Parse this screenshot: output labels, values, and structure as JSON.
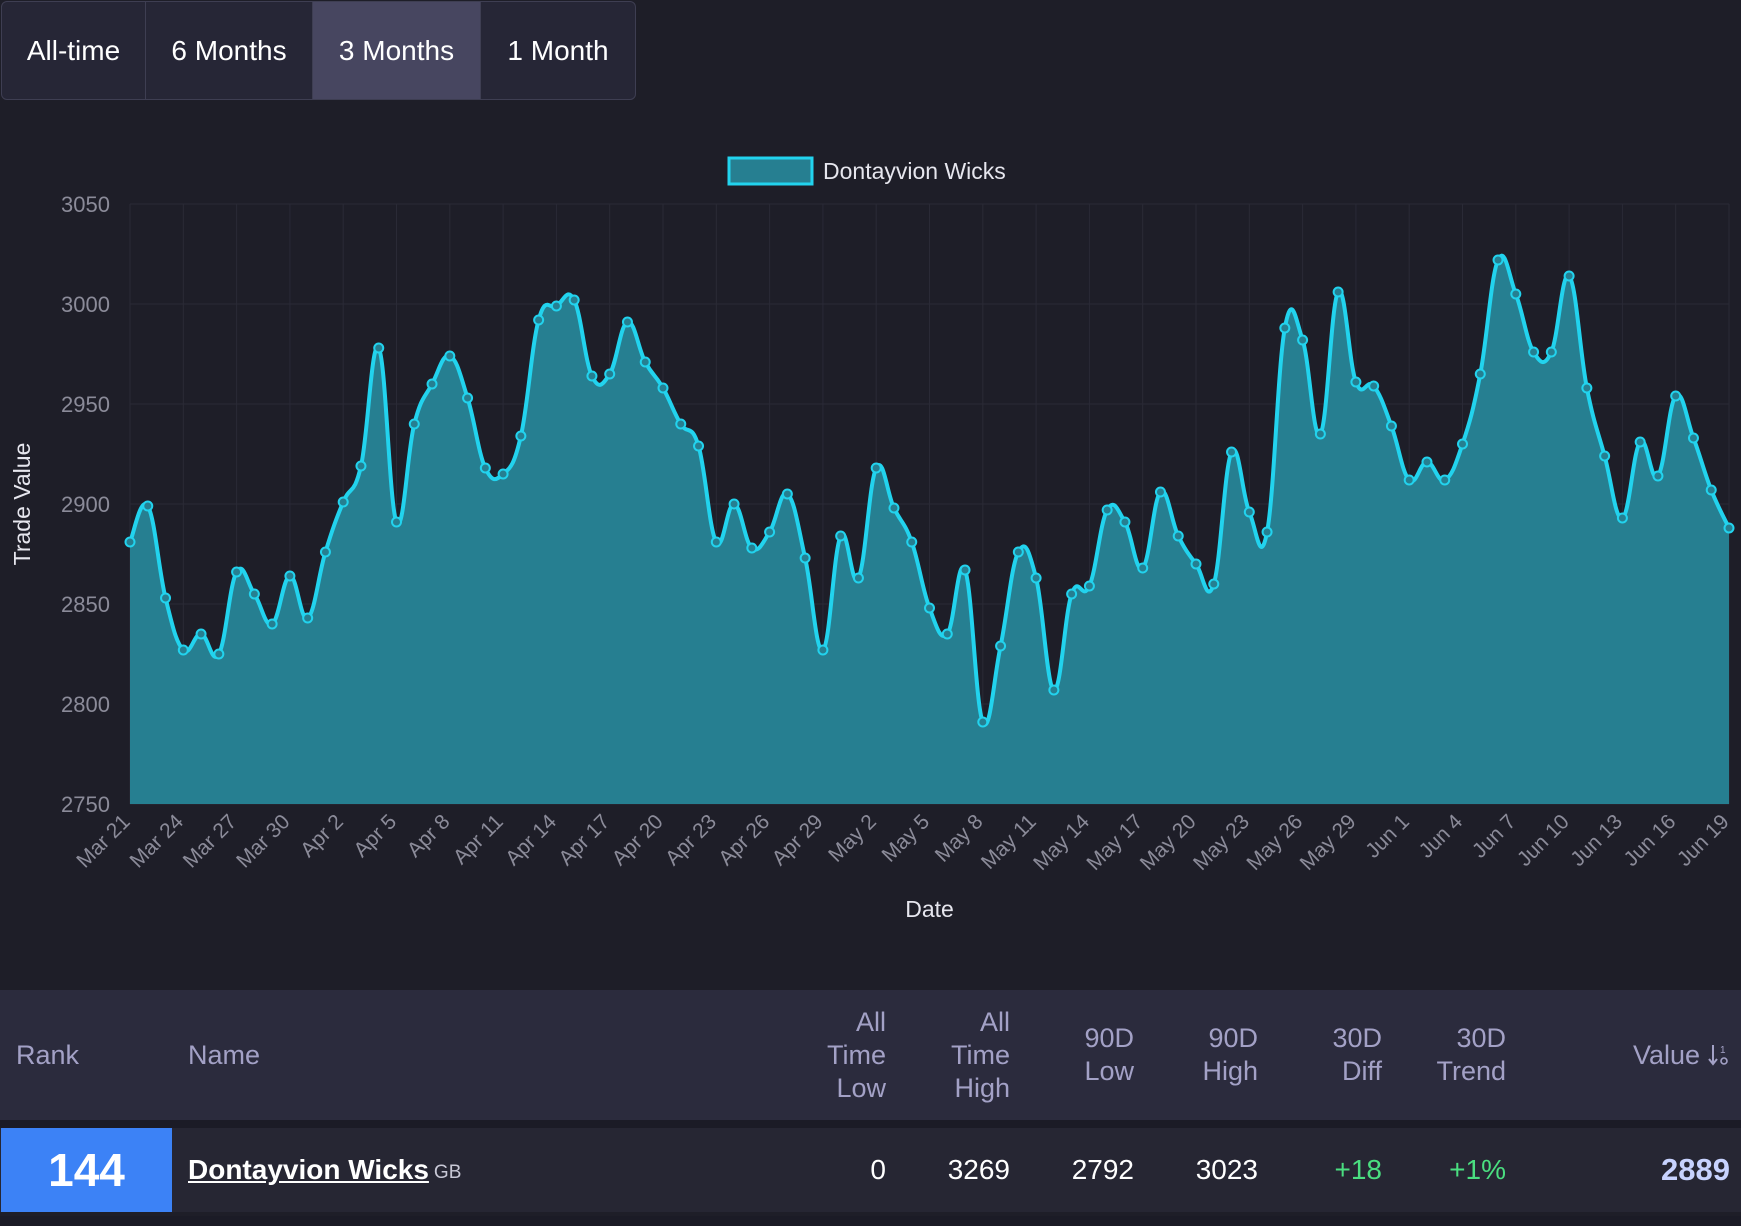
{
  "tabs": [
    {
      "label": "All-time",
      "active": false
    },
    {
      "label": "6 Months",
      "active": false
    },
    {
      "label": "3 Months",
      "active": true
    },
    {
      "label": "1 Month",
      "active": false
    }
  ],
  "chart_data": {
    "type": "area",
    "xlabel": "Date",
    "ylabel": "Trade Value",
    "ylim": [
      2750,
      3050
    ],
    "yticks": [
      2750,
      2800,
      2850,
      2900,
      2950,
      3000,
      3050
    ],
    "xticks": [
      "Mar 21",
      "Mar 24",
      "Mar 27",
      "Mar 30",
      "Apr 2",
      "Apr 5",
      "Apr 8",
      "Apr 11",
      "Apr 14",
      "Apr 17",
      "Apr 20",
      "Apr 23",
      "Apr 26",
      "Apr 29",
      "May 2",
      "May 5",
      "May 8",
      "May 11",
      "May 14",
      "May 17",
      "May 20",
      "May 23",
      "May 26",
      "May 29",
      "Jun 1",
      "Jun 4",
      "Jun 7",
      "Jun 10",
      "Jun 13",
      "Jun 16",
      "Jun 19"
    ],
    "grid": true,
    "legend_position": "top",
    "series": [
      {
        "name": "Dontayvion Wicks",
        "color": "#22d3ee",
        "fill": "#267f91",
        "values": [
          2881,
          2899,
          2853,
          2827,
          2835,
          2825,
          2866,
          2855,
          2840,
          2864,
          2843,
          2876,
          2901,
          2919,
          2978,
          2891,
          2940,
          2960,
          2974,
          2953,
          2918,
          2915,
          2934,
          2992,
          2999,
          3002,
          2964,
          2965,
          2991,
          2971,
          2958,
          2940,
          2929,
          2881,
          2900,
          2878,
          2886,
          2905,
          2873,
          2827,
          2884,
          2863,
          2918,
          2898,
          2881,
          2848,
          2835,
          2867,
          2791,
          2829,
          2876,
          2863,
          2807,
          2855,
          2859,
          2897,
          2891,
          2868,
          2906,
          2884,
          2870,
          2860,
          2926,
          2896,
          2886,
          2988,
          2982,
          2935,
          3006,
          2961,
          2959,
          2939,
          2912,
          2921,
          2912,
          2930,
          2965,
          3022,
          3005,
          2976,
          2976,
          3014,
          2958,
          2924,
          2893,
          2931,
          2914,
          2954,
          2933,
          2907,
          2888
        ]
      }
    ]
  },
  "table": {
    "headers": {
      "rank": "Rank",
      "name": "Name",
      "all_time_low": [
        "All",
        "Time",
        "Low"
      ],
      "all_time_high": [
        "All",
        "Time",
        "High"
      ],
      "d90_low": [
        "90D",
        "Low"
      ],
      "d90_high": [
        "90D",
        "High"
      ],
      "d30_diff": [
        "30D",
        "Diff"
      ],
      "d30_trend": [
        "30D",
        "Trend"
      ],
      "value": "Value",
      "sort_icon": "sort-descending-icon"
    },
    "row": {
      "rank": "144",
      "name": "Dontayvion Wicks",
      "team": "GB",
      "all_time_low": "0",
      "all_time_high": "3269",
      "d90_low": "2792",
      "d90_high": "3023",
      "d30_diff": "+18",
      "d30_trend": "+1%",
      "value": "2889"
    }
  }
}
